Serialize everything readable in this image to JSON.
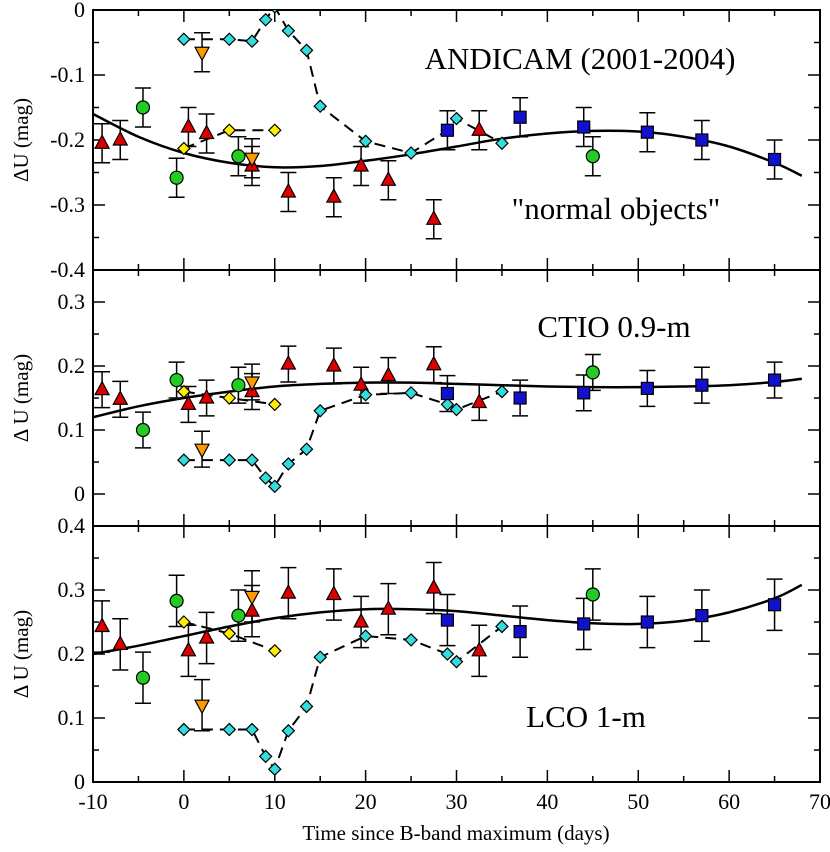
{
  "chart_data": {
    "type": "scatter",
    "xlabel": "Time since B-band maximum (days)",
    "xlim": [
      -10,
      70
    ],
    "xticks": [
      -10,
      0,
      10,
      20,
      30,
      40,
      50,
      60,
      70
    ],
    "xtick_labels": [
      "-10",
      "0",
      "10",
      "20",
      "30",
      "40",
      "50",
      "60",
      "70"
    ],
    "marker_colors": {
      "triangle_up": "#dd0000",
      "circle": "#22cc22",
      "diamond_yellow": "#ffee00",
      "diamond_cyan": "#33dddd",
      "triangle_down": "#ff9900",
      "square": "#1111cc"
    },
    "panels": [
      {
        "id": "andicam",
        "title": "ANDICAM (2001-2004)",
        "subtitle": "\"normal objects\"",
        "ylabel": "ΔU (mag)",
        "ylim": [
          -0.4,
          0
        ],
        "yticks": [
          -0.4,
          -0.3,
          -0.2,
          -0.1,
          0
        ],
        "ytick_labels": [
          "-0.4",
          "-0.3",
          "-0.2",
          "-0.1",
          "0"
        ],
        "fit_curve": {
          "x": [
            -10,
            -5,
            0,
            5,
            10,
            15,
            20,
            25,
            30,
            35,
            40,
            45,
            50,
            55,
            60,
            65,
            68
          ],
          "y": [
            -0.16,
            -0.195,
            -0.22,
            -0.235,
            -0.242,
            -0.24,
            -0.232,
            -0.222,
            -0.21,
            -0.198,
            -0.19,
            -0.186,
            -0.187,
            -0.195,
            -0.21,
            -0.235,
            -0.255
          ]
        },
        "series": [
          {
            "name": "red triangles",
            "marker": "triangle_up",
            "x": [
              -9,
              -7,
              0.5,
              2.5,
              7.5,
              11.5,
              16.5,
              19.5,
              22.5,
              27.5,
              32.5
            ],
            "y": [
              -0.205,
              -0.2,
              -0.18,
              -0.19,
              -0.24,
              -0.28,
              -0.288,
              -0.24,
              -0.262,
              -0.322,
              -0.185
            ],
            "err": [
              0.03,
              0.03,
              0.03,
              0.03,
              0.03,
              0.03,
              0.03,
              0.03,
              0.03,
              0.03,
              0.03
            ]
          },
          {
            "name": "green circles",
            "marker": "circle",
            "x": [
              -4.5,
              -0.8,
              6,
              45
            ],
            "y": [
              -0.15,
              -0.258,
              -0.225,
              -0.225
            ],
            "err": [
              0.03,
              0.03,
              0.03,
              0.03
            ]
          },
          {
            "name": "yellow diamonds",
            "marker": "diamond_yellow",
            "connected": true,
            "dashed": true,
            "x": [
              0,
              5,
              10
            ],
            "y": [
              -0.213,
              -0.185,
              -0.185
            ],
            "err": []
          },
          {
            "name": "cyan diamonds",
            "marker": "diamond_cyan",
            "connected": true,
            "dashed": true,
            "x": [
              0,
              5,
              7.5,
              9,
              10,
              11.5,
              13.5,
              15,
              20,
              25,
              29,
              30,
              35
            ],
            "y": [
              -0.045,
              -0.045,
              -0.048,
              -0.015,
              0.005,
              -0.032,
              -0.062,
              -0.148,
              -0.202,
              -0.22,
              -0.185,
              -0.167,
              -0.205
            ],
            "err": []
          },
          {
            "name": "orange triangles",
            "marker": "triangle_down",
            "x": [
              2,
              7.5
            ],
            "y": [
              -0.065,
              -0.228
            ],
            "err": [
              0.03,
              0.03
            ]
          },
          {
            "name": "blue squares",
            "marker": "square",
            "x": [
              29,
              37,
              44,
              51,
              57,
              65
            ],
            "y": [
              -0.185,
              -0.165,
              -0.18,
              -0.188,
              -0.2,
              -0.23
            ],
            "err": [
              0.03,
              0.03,
              0.03,
              0.03,
              0.03,
              0.03
            ]
          }
        ]
      },
      {
        "id": "ctio",
        "title": "CTIO 0.9-m",
        "subtitle": "",
        "ylabel": "Δ U (mag)",
        "ylim": [
          -0.05,
          0.35
        ],
        "yticks": [
          0,
          0.1,
          0.2,
          0.3
        ],
        "ytick_labels": [
          "0",
          "0.1",
          "0.2",
          "0.3"
        ],
        "fit_curve": {
          "x": [
            -10,
            -5,
            0,
            5,
            10,
            15,
            20,
            25,
            30,
            35,
            40,
            45,
            50,
            55,
            60,
            65,
            68
          ],
          "y": [
            0.12,
            0.137,
            0.15,
            0.16,
            0.168,
            0.172,
            0.174,
            0.174,
            0.172,
            0.17,
            0.168,
            0.167,
            0.167,
            0.168,
            0.17,
            0.175,
            0.18
          ]
        },
        "series": [
          {
            "name": "red triangles",
            "marker": "triangle_up",
            "x": [
              -9,
              -7,
              0.5,
              2.5,
              7.5,
              11.5,
              16.5,
              19.5,
              22.5,
              27.5,
              32.5
            ],
            "y": [
              0.163,
              0.148,
              0.14,
              0.15,
              0.16,
              0.203,
              0.2,
              0.17,
              0.185,
              0.202,
              0.143
            ],
            "err": [
              0.028,
              0.028,
              0.028,
              0.028,
              0.028,
              0.028,
              0.028,
              0.028,
              0.028,
              0.028,
              0.028
            ]
          },
          {
            "name": "green circles",
            "marker": "circle",
            "x": [
              -4.5,
              -0.8,
              6,
              45
            ],
            "y": [
              0.1,
              0.178,
              0.17,
              0.19
            ],
            "err": [
              0.028,
              0.028,
              0.028,
              0.028
            ]
          },
          {
            "name": "yellow diamonds",
            "marker": "diamond_yellow",
            "connected": true,
            "dashed": true,
            "x": [
              0,
              5,
              10
            ],
            "y": [
              0.16,
              0.15,
              0.14
            ],
            "err": []
          },
          {
            "name": "cyan diamonds",
            "marker": "diamond_cyan",
            "connected": true,
            "dashed": true,
            "x": [
              0,
              5,
              7.5,
              9,
              10,
              11.5,
              13.5,
              15,
              20,
              25,
              29,
              30,
              35
            ],
            "y": [
              0.053,
              0.053,
              0.053,
              0.025,
              0.012,
              0.047,
              0.07,
              0.13,
              0.155,
              0.158,
              0.14,
              0.132,
              0.16
            ],
            "err": []
          },
          {
            "name": "orange triangles",
            "marker": "triangle_down",
            "x": [
              2,
              7.5
            ],
            "y": [
              0.07,
              0.175
            ],
            "err": [
              0.028,
              0.028
            ]
          },
          {
            "name": "blue squares",
            "marker": "square",
            "x": [
              29,
              37,
              44,
              51,
              57,
              65
            ],
            "y": [
              0.157,
              0.15,
              0.158,
              0.165,
              0.17,
              0.178
            ],
            "err": [
              0.028,
              0.028,
              0.028,
              0.028,
              0.028,
              0.028
            ]
          }
        ]
      },
      {
        "id": "lco",
        "title": "LCO 1-m",
        "subtitle": "",
        "ylabel": "Δ U (mag)",
        "ylim": [
          0,
          0.4
        ],
        "yticks": [
          0,
          0.1,
          0.2,
          0.3,
          0.4
        ],
        "ytick_labels": [
          "0",
          "0.1",
          "0.2",
          "0.3",
          "0.4"
        ],
        "fit_curve": {
          "x": [
            -10,
            -5,
            0,
            5,
            10,
            15,
            20,
            25,
            30,
            35,
            40,
            45,
            50,
            55,
            60,
            65,
            68
          ],
          "y": [
            0.2,
            0.213,
            0.228,
            0.243,
            0.256,
            0.265,
            0.27,
            0.27,
            0.267,
            0.26,
            0.253,
            0.248,
            0.247,
            0.252,
            0.265,
            0.287,
            0.308
          ]
        },
        "series": [
          {
            "name": "red triangles",
            "marker": "triangle_up",
            "x": [
              -9,
              -7,
              0.5,
              2.5,
              7.5,
              11.5,
              16.5,
              19.5,
              22.5,
              27.5,
              32.5
            ],
            "y": [
              0.243,
              0.215,
              0.205,
              0.225,
              0.267,
              0.295,
              0.293,
              0.25,
              0.27,
              0.303,
              0.205
            ],
            "err": [
              0.04,
              0.04,
              0.04,
              0.04,
              0.04,
              0.04,
              0.04,
              0.04,
              0.04,
              0.04,
              0.04
            ]
          },
          {
            "name": "green circles",
            "marker": "circle",
            "x": [
              -4.5,
              -0.8,
              6,
              45
            ],
            "y": [
              0.163,
              0.283,
              0.26,
              0.293
            ],
            "err": [
              0.04,
              0.04,
              0.04,
              0.04
            ]
          },
          {
            "name": "yellow diamonds",
            "marker": "diamond_yellow",
            "connected": true,
            "dashed": true,
            "x": [
              0,
              5,
              10
            ],
            "y": [
              0.25,
              0.232,
              0.205
            ],
            "err": []
          },
          {
            "name": "cyan diamonds",
            "marker": "diamond_cyan",
            "connected": true,
            "dashed": true,
            "x": [
              0,
              5,
              7.5,
              9,
              10,
              11.5,
              13.5,
              15,
              20,
              25,
              29,
              30,
              35
            ],
            "y": [
              0.082,
              0.082,
              0.082,
              0.04,
              0.02,
              0.08,
              0.118,
              0.195,
              0.228,
              0.222,
              0.2,
              0.188,
              0.243
            ],
            "err": []
          },
          {
            "name": "orange triangles",
            "marker": "triangle_down",
            "x": [
              2,
              7.5
            ],
            "y": [
              0.12,
              0.29
            ],
            "err": [
              0.04,
              0.04
            ]
          },
          {
            "name": "blue squares",
            "marker": "square",
            "x": [
              29,
              37,
              44,
              51,
              57,
              65
            ],
            "y": [
              0.253,
              0.235,
              0.247,
              0.25,
              0.26,
              0.277
            ],
            "err": [
              0.04,
              0.04,
              0.04,
              0.04,
              0.04,
              0.04
            ]
          }
        ]
      }
    ]
  }
}
